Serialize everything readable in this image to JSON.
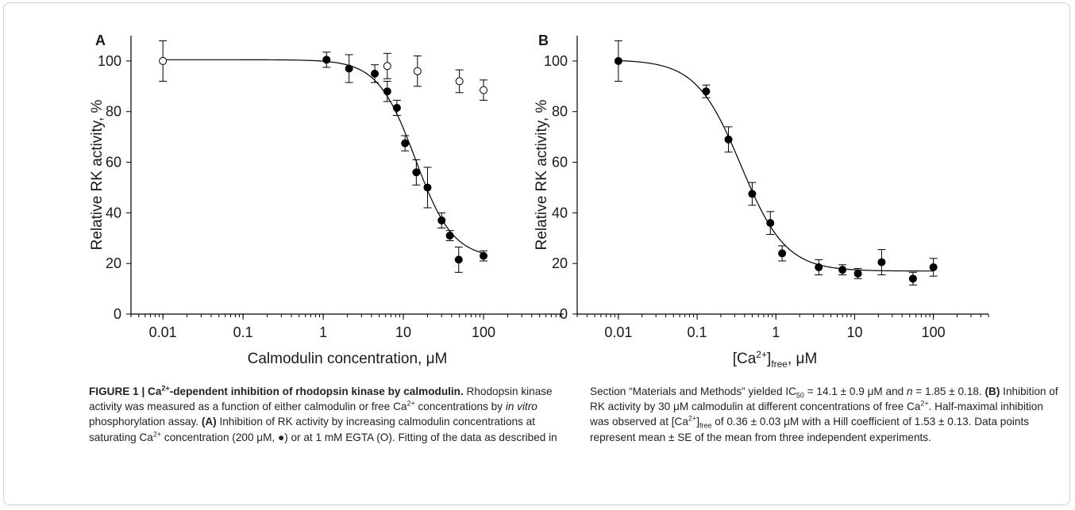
{
  "chart_data": [
    {
      "type": "scatter",
      "panel": "A",
      "ylabel": "Relative RK activity, %",
      "xlabel": "Calmodulin concentration, μM",
      "xlog": true,
      "xlim": [
        0.004,
        1000
      ],
      "xticks": [
        0.01,
        0.1,
        1,
        10,
        100
      ],
      "minor_ticks": true,
      "ylim": [
        0,
        110
      ],
      "yticks": [
        0,
        20,
        40,
        60,
        80,
        100
      ],
      "series": [
        {
          "marker": "filled",
          "color": "#000000",
          "x": [
            1.1,
            2.1,
            4.4,
            6.3,
            8.3,
            10.5,
            14.5,
            20,
            30,
            38,
            49,
            100
          ],
          "values": [
            100.5,
            97,
            95,
            88,
            81.5,
            67.5,
            56,
            50,
            37,
            31,
            21.5,
            23
          ],
          "errors": [
            3,
            5.5,
            3.5,
            4,
            3,
            3,
            5,
            8,
            3,
            2,
            5,
            2
          ]
        },
        {
          "marker": "open",
          "color": "#000000",
          "x": [
            0.01,
            6.3,
            15,
            50,
            100
          ],
          "values": [
            100,
            98,
            96,
            92,
            88.5
          ],
          "errors": [
            8,
            5,
            6,
            4.5,
            4
          ]
        }
      ],
      "fit": {
        "top": 100.5,
        "bottom": 22,
        "ic50": 14.1,
        "n": 1.85,
        "xrange": [
          0.01,
          100
        ]
      }
    },
    {
      "type": "scatter",
      "panel": "B",
      "ylabel": "Relative RK activity, %",
      "xlabel": [
        {
          "text": "[Ca"
        },
        {
          "text": "2+",
          "style": "sup"
        },
        {
          "text": "]"
        },
        {
          "text": "free",
          "style": "sub"
        },
        {
          "text": ", μM"
        }
      ],
      "xlog": true,
      "xlim": [
        0.003,
        500
      ],
      "xticks": [
        0.01,
        0.1,
        1,
        10,
        100
      ],
      "minor_ticks": true,
      "ylim": [
        0,
        110
      ],
      "yticks": [
        0,
        20,
        40,
        60,
        80,
        100
      ],
      "series": [
        {
          "marker": "filled",
          "color": "#000000",
          "x": [
            0.01,
            0.13,
            0.25,
            0.5,
            0.85,
            1.2,
            3.5,
            7,
            11,
            22,
            55,
            100
          ],
          "values": [
            100,
            88,
            69,
            47.5,
            36,
            24,
            18.5,
            17.5,
            16,
            20.5,
            14,
            18.5
          ],
          "errors": [
            8,
            2.5,
            5,
            4.5,
            4.5,
            3,
            3,
            2,
            2,
            5,
            2.5,
            3.5
          ]
        }
      ],
      "fit": {
        "top": 100.5,
        "bottom": 17,
        "ic50": 0.36,
        "n": 1.53,
        "xrange": [
          0.01,
          100
        ]
      }
    }
  ],
  "caption": {
    "runs": [
      {
        "text": "FIGURE 1 | Ca",
        "style": "b"
      },
      {
        "text": "2+",
        "style": "bsup"
      },
      {
        "text": "-dependent inhibition of rhodopsin kinase by calmodulin.",
        "style": "b"
      },
      {
        "text": " Rhodopsin kinase activity was measured as a function of either calmodulin or free Ca"
      },
      {
        "text": "2+",
        "style": "sup"
      },
      {
        "text": " concentrations by "
      },
      {
        "text": "in vitro",
        "style": "i"
      },
      {
        "text": " phosphorylation assay. "
      },
      {
        "text": "(A)",
        "style": "b"
      },
      {
        "text": " Inhibition of RK activity by increasing calmodulin concentrations at saturating Ca"
      },
      {
        "text": "2+",
        "style": "sup"
      },
      {
        "text": " concentration (200 μM, ●) or at 1 mM EGTA (O). Fitting of the data as described in Section “Materials and Methods” yielded IC"
      },
      {
        "text": "50",
        "style": "sub"
      },
      {
        "text": " = 14.1 ± 0.9 μM and "
      },
      {
        "text": "n",
        "style": "i"
      },
      {
        "text": " = 1.85 ± 0.18. "
      },
      {
        "text": "(B)",
        "style": "b"
      },
      {
        "text": " Inhibition of RK activity by 30 μM calmodulin at different concentrations of free Ca"
      },
      {
        "text": "2+",
        "style": "sup"
      },
      {
        "text": ". Half-maximal inhibition was observed at [Ca"
      },
      {
        "text": "2+",
        "style": "sup"
      },
      {
        "text": "]"
      },
      {
        "text": "free",
        "style": "sub"
      },
      {
        "text": " of 0.36 ± 0.03 μM with a Hill coefficient of 1.53 ± 0.13. Data points represent mean ± SE of the mean from three independent experiments."
      }
    ]
  }
}
